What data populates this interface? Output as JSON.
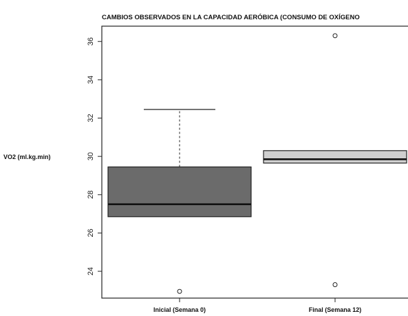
{
  "chart_data": {
    "type": "boxplot",
    "title": "CAMBIOS OBSERVADOS EN LA CAPACIDAD AERÓBICA (CONSUMO DE OXÍGENO",
    "xlabel": "",
    "ylabel": "VO2 (ml.kg.min)",
    "ylim": [
      22.6,
      36.8
    ],
    "yticks": [
      24,
      26,
      28,
      30,
      32,
      34,
      36
    ],
    "categories": [
      "Inicial (Semana 0)",
      "Final (Semana 12)"
    ],
    "boxes": [
      {
        "category": "Inicial (Semana 0)",
        "whisker_low": 26.85,
        "q1": 26.85,
        "median": 27.5,
        "q3": 29.45,
        "whisker_high": 32.45,
        "outliers": [
          22.95
        ],
        "color": "#6b6b6b"
      },
      {
        "category": "Final (Semana 12)",
        "whisker_low": 29.65,
        "q1": 29.65,
        "median": 29.85,
        "q3": 30.3,
        "whisker_high": 30.3,
        "outliers": [
          36.3,
          23.3
        ],
        "color": "#cfcfcf"
      }
    ],
    "grid": false,
    "legend": "none"
  }
}
